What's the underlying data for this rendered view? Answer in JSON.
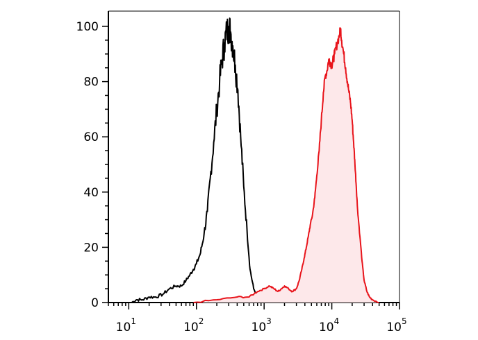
{
  "chart_data": {
    "type": "area",
    "title": "",
    "xlabel": "",
    "ylabel": "",
    "x_scale": "log",
    "xlim": [
      5,
      100000
    ],
    "ylim": [
      0,
      105
    ],
    "grid": false,
    "x_ticks": [
      {
        "base": "10",
        "exp": "1",
        "value": 10
      },
      {
        "base": "10",
        "exp": "2",
        "value": 100
      },
      {
        "base": "10",
        "exp": "3",
        "value": 1000
      },
      {
        "base": "10",
        "exp": "4",
        "value": 10000
      },
      {
        "base": "10",
        "exp": "5",
        "value": 100000
      }
    ],
    "y_ticks": [
      "0",
      "20",
      "40",
      "60",
      "80",
      "100"
    ],
    "series": [
      {
        "color": "#000000",
        "fill": "none",
        "points": [
          [
            11,
            0
          ],
          [
            13,
            1
          ],
          [
            16,
            1
          ],
          [
            20,
            2
          ],
          [
            25,
            2
          ],
          [
            32,
            3
          ],
          [
            40,
            5
          ],
          [
            50,
            6
          ],
          [
            60,
            6
          ],
          [
            70,
            8
          ],
          [
            80,
            10
          ],
          [
            90,
            12
          ],
          [
            100,
            14
          ],
          [
            115,
            18
          ],
          [
            130,
            25
          ],
          [
            145,
            33
          ],
          [
            160,
            45
          ],
          [
            180,
            58
          ],
          [
            200,
            70
          ],
          [
            220,
            80
          ],
          [
            240,
            88
          ],
          [
            260,
            94
          ],
          [
            280,
            98
          ],
          [
            300,
            100
          ],
          [
            320,
            98
          ],
          [
            345,
            93
          ],
          [
            375,
            86
          ],
          [
            410,
            77
          ],
          [
            450,
            60
          ],
          [
            500,
            42
          ],
          [
            560,
            26
          ],
          [
            620,
            12
          ],
          [
            700,
            5
          ],
          [
            800,
            2
          ],
          [
            900,
            1
          ],
          [
            1000,
            0
          ],
          [
            1200,
            0
          ]
        ]
      },
      {
        "color": "#e8141b",
        "fill": "#fde8ea",
        "points": [
          [
            90,
            0
          ],
          [
            200,
            1
          ],
          [
            400,
            2
          ],
          [
            600,
            2
          ],
          [
            800,
            4
          ],
          [
            1000,
            5
          ],
          [
            1200,
            6
          ],
          [
            1400,
            5
          ],
          [
            1600,
            4
          ],
          [
            1800,
            5
          ],
          [
            2000,
            6
          ],
          [
            2300,
            5
          ],
          [
            2600,
            4
          ],
          [
            3000,
            5
          ],
          [
            3300,
            8
          ],
          [
            3600,
            12
          ],
          [
            3900,
            16
          ],
          [
            4200,
            20
          ],
          [
            4500,
            24
          ],
          [
            4800,
            28
          ],
          [
            5200,
            32
          ],
          [
            5600,
            38
          ],
          [
            6000,
            46
          ],
          [
            6500,
            55
          ],
          [
            7000,
            66
          ],
          [
            7500,
            76
          ],
          [
            8000,
            82
          ],
          [
            8500,
            84
          ],
          [
            9000,
            88
          ],
          [
            9500,
            87
          ],
          [
            10000,
            86
          ],
          [
            10500,
            88
          ],
          [
            11000,
            90
          ],
          [
            12000,
            94
          ],
          [
            13000,
            97
          ],
          [
            13500,
            99
          ],
          [
            14000,
            95
          ],
          [
            15000,
            90
          ],
          [
            16000,
            85
          ],
          [
            17000,
            80
          ],
          [
            18000,
            76
          ],
          [
            19000,
            72
          ],
          [
            20000,
            66
          ],
          [
            21000,
            58
          ],
          [
            22000,
            50
          ],
          [
            23000,
            42
          ],
          [
            24000,
            34
          ],
          [
            26000,
            24
          ],
          [
            28000,
            15
          ],
          [
            30000,
            8
          ],
          [
            33000,
            4
          ],
          [
            36000,
            2
          ],
          [
            40000,
            1
          ],
          [
            50000,
            0
          ]
        ]
      }
    ]
  }
}
